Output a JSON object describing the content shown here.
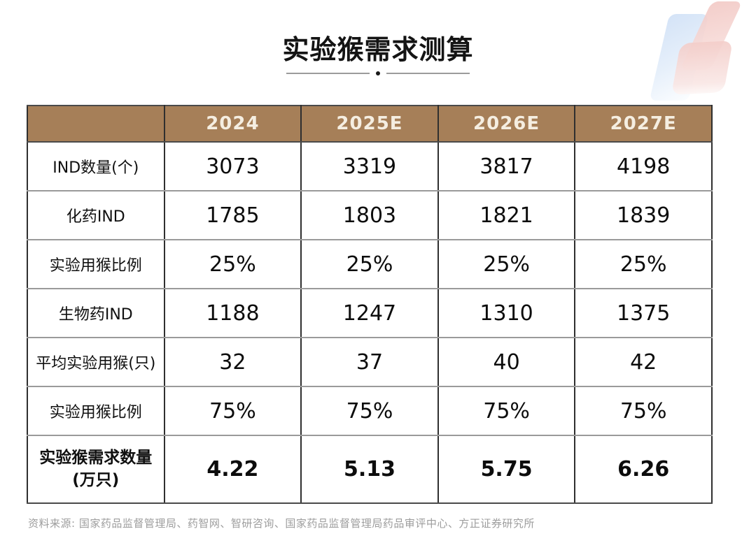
{
  "title": "实验猴需求测算",
  "table": {
    "columns": [
      "",
      "2024",
      "2025E",
      "2026E",
      "2027E"
    ],
    "rows": [
      {
        "label": "IND数量(个)",
        "values": [
          "3073",
          "3319",
          "3817",
          "4198"
        ],
        "bold": false
      },
      {
        "label": "化药IND",
        "values": [
          "1785",
          "1803",
          "1821",
          "1839"
        ],
        "bold": false
      },
      {
        "label": "实验用猴比例",
        "values": [
          "25%",
          "25%",
          "25%",
          "25%"
        ],
        "bold": false
      },
      {
        "label": "生物药IND",
        "values": [
          "1188",
          "1247",
          "1310",
          "1375"
        ],
        "bold": false
      },
      {
        "label": "平均实验用猴(只)",
        "values": [
          "32",
          "37",
          "40",
          "42"
        ],
        "bold": false
      },
      {
        "label": "实验用猴比例",
        "values": [
          "75%",
          "75%",
          "75%",
          "75%"
        ],
        "bold": false
      },
      {
        "label": "实验猴需求数量\n(万只)",
        "values": [
          "4.22",
          "5.13",
          "5.75",
          "6.26"
        ],
        "bold": true
      }
    ]
  },
  "footer": {
    "source": "资料来源: 国家药品监督管理局、药智网、智研咨询、国家药品监督管理局药品审评中心、方正证券研究所"
  },
  "colors": {
    "header_bg": "#A67F58",
    "header_text": "#F5EEE1",
    "border_vertical": "#2F2F2F",
    "border_horizontal": "#9A9A9A",
    "body_text": "#101010",
    "footer_text": "#9D9D9D",
    "divider_line": "#9B9B9B",
    "divider_dot": "#1A1A1A",
    "watermark_blue": "#CFE0F6",
    "watermark_pink": "#F2C8C4"
  },
  "chart_data": {
    "type": "table",
    "title": "实验猴需求测算",
    "categories": [
      "2024",
      "2025E",
      "2026E",
      "2027E"
    ],
    "series": [
      {
        "name": "IND数量(个)",
        "values": [
          3073,
          3319,
          3817,
          4198
        ]
      },
      {
        "name": "化药IND",
        "values": [
          1785,
          1803,
          1821,
          1839
        ]
      },
      {
        "name": "实验用猴比例",
        "values": [
          "25%",
          "25%",
          "25%",
          "25%"
        ]
      },
      {
        "name": "生物药IND",
        "values": [
          1188,
          1247,
          1310,
          1375
        ]
      },
      {
        "name": "平均实验用猴(只)",
        "values": [
          32,
          37,
          40,
          42
        ]
      },
      {
        "name": "实验用猴比例",
        "values": [
          "75%",
          "75%",
          "75%",
          "75%"
        ]
      },
      {
        "name": "实验猴需求数量(万只)",
        "values": [
          4.22,
          5.13,
          5.75,
          6.26
        ]
      }
    ],
    "source_note": "资料来源: 国家药品监督管理局、药智网、智研咨询、国家药品监督管理局药品审评中心、方正证券研究所"
  }
}
